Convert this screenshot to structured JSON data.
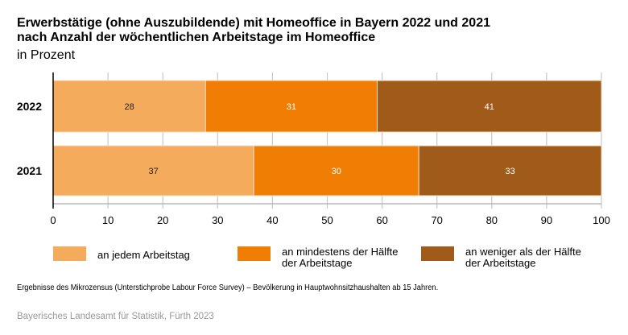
{
  "chart_data": {
    "type": "bar",
    "orientation": "horizontal",
    "stacked": true,
    "title": "Erwerbstätige (ohne Auszubildende) mit Homeoffice in Bayern 2022 und 2021",
    "title_line2": "nach Anzahl der wöchentlichen Arbeitstage im Homeoffice",
    "subtitle": "in Prozent",
    "categories": [
      "2022",
      "2021"
    ],
    "series": [
      {
        "name": "an jedem Arbeitstag",
        "name_lines": [
          "an jedem Arbeitstag"
        ],
        "color": "#F5AB5C",
        "label_color": "#222222",
        "values": [
          28,
          37
        ]
      },
      {
        "name": "an mindestens der Hälfte der Arbeitstage",
        "name_lines": [
          "an mindestens der Hälfte",
          "der Arbeitstage"
        ],
        "color": "#F07E05",
        "label_color": "#ffffff",
        "values": [
          31,
          30
        ]
      },
      {
        "name": "an weniger als der Hälfte der Arbeitstage",
        "name_lines": [
          "an weniger als der Hälfte",
          "der Arbeitstage"
        ],
        "color": "#A05A19",
        "label_color": "#ffffff",
        "values": [
          41,
          33
        ]
      }
    ],
    "bar_starts": [
      [
        0,
        27.8,
        59.1
      ],
      [
        0,
        36.6,
        66.7
      ]
    ],
    "xlim": [
      0,
      100
    ],
    "xticks": [
      0,
      10,
      20,
      30,
      40,
      50,
      60,
      70,
      80,
      90,
      100
    ],
    "grid": true,
    "legend_position": "bottom"
  },
  "footer": {
    "note": "Ergebnisse des Mikrozensus (Unterstichprobe Labour Force Survey) – Bevölkerung in Hauptwohnsitzhaushalten ab 15 Jahren.",
    "source": "Bayerisches Landesamt für Statistik, Fürth 2023"
  }
}
